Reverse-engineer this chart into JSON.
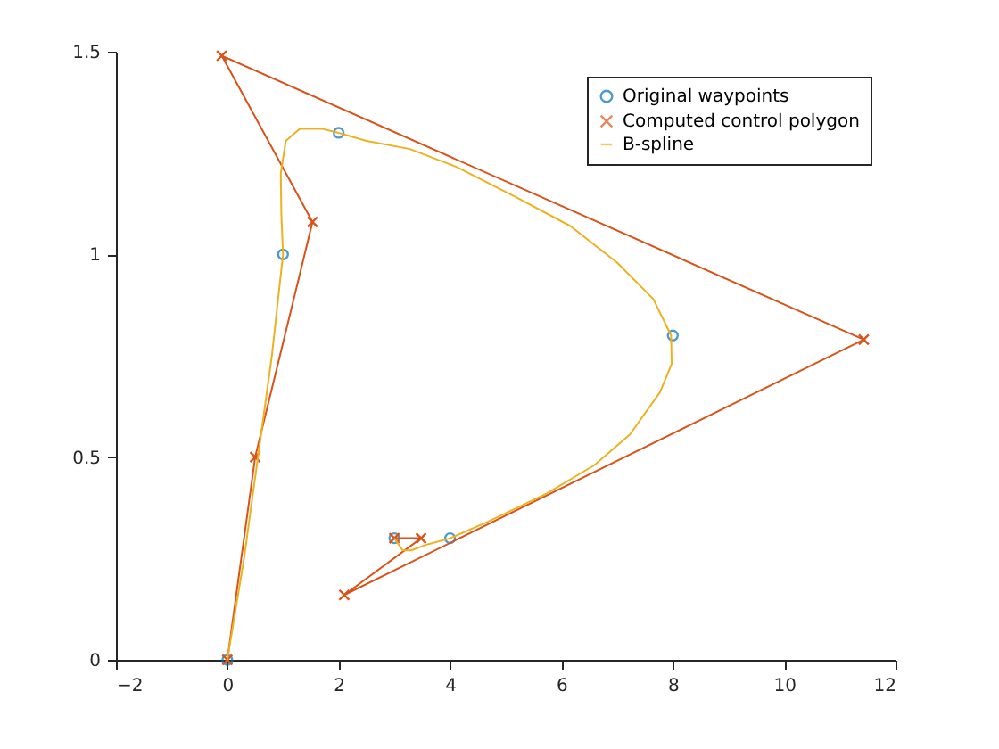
{
  "chart_data": {
    "type": "line",
    "xlim": [
      -2,
      12
    ],
    "ylim": [
      0,
      1.5
    ],
    "xticks": [
      -2,
      0,
      2,
      4,
      6,
      8,
      10,
      12
    ],
    "yticks": [
      0,
      0.5,
      1,
      1.5
    ],
    "grid": false,
    "legend": "top right",
    "series": [
      {
        "name": "Original waypoints",
        "type": "scatter",
        "color": "#0072bd",
        "marker": "circle",
        "x": [
          0,
          1,
          2,
          8,
          4,
          3
        ],
        "values": [
          0,
          1,
          1.3,
          0.8,
          0.3,
          0.3
        ]
      },
      {
        "name": "Computed control polygon",
        "color": "#d95319",
        "marker": "cross",
        "x": [
          0,
          0.5,
          1.53,
          -0.1,
          11.43,
          2.1,
          3.48,
          3
        ],
        "values": [
          0,
          0.5,
          1.08,
          1.49,
          0.79,
          0.16,
          0.3,
          0.3
        ]
      },
      {
        "name": "B-spline",
        "color": "#edb120",
        "marker": "none",
        "x": [
          0,
          0.3,
          0.55,
          0.8,
          1,
          0.97,
          0.96,
          1.05,
          1.3,
          1.7,
          2,
          2.5,
          3.28,
          4.13,
          5.2,
          6.16,
          7,
          7.65,
          7.97,
          7.98,
          7.77,
          7.23,
          6.59,
          5.73,
          4.67,
          4,
          3.6,
          3.3,
          3.15,
          3
        ],
        "values": [
          0,
          0.25,
          0.5,
          0.75,
          1,
          1.1,
          1.2,
          1.28,
          1.31,
          1.31,
          1.3,
          1.28,
          1.26,
          1.215,
          1.14,
          1.07,
          0.98,
          0.89,
          0.8,
          0.73,
          0.66,
          0.556,
          0.48,
          0.41,
          0.34,
          0.3,
          0.285,
          0.27,
          0.27,
          0.3
        ]
      }
    ]
  }
}
